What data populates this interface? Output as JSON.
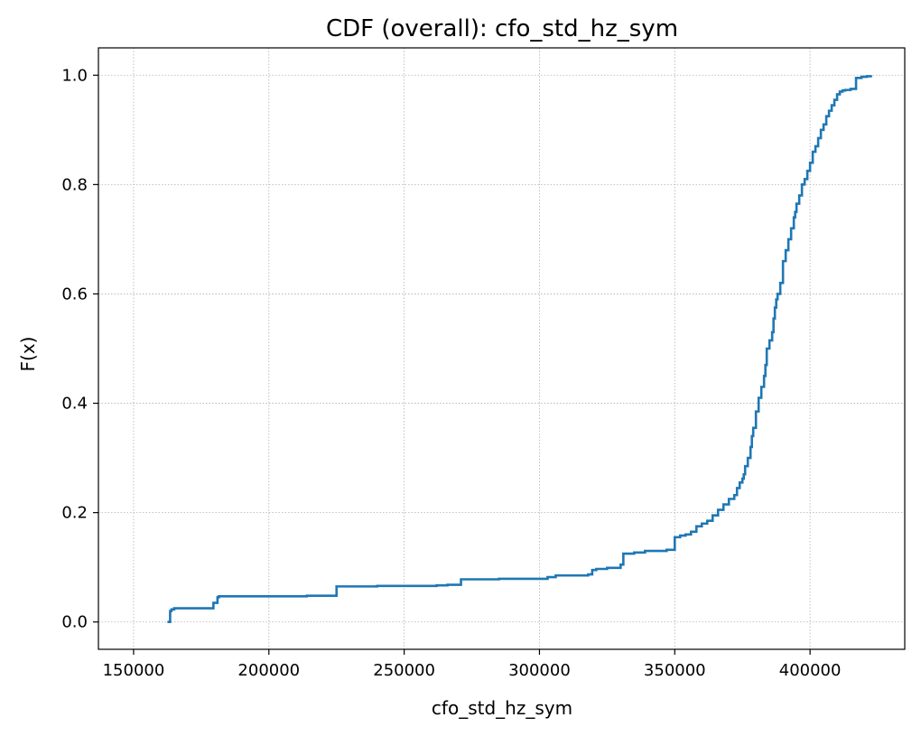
{
  "chart_data": {
    "type": "line",
    "title": "CDF (overall): cfo_std_hz_sym",
    "xlabel": "cfo_std_hz_sym",
    "ylabel": "F(x)",
    "xlim": [
      137000,
      435000
    ],
    "ylim": [
      -0.05,
      1.05
    ],
    "xticks": [
      150000,
      200000,
      250000,
      300000,
      350000,
      400000
    ],
    "xtick_labels": [
      "150000",
      "200000",
      "250000",
      "300000",
      "350000",
      "400000"
    ],
    "yticks": [
      0.0,
      0.2,
      0.4,
      0.6,
      0.8,
      1.0
    ],
    "ytick_labels": [
      "0.0",
      "0.2",
      "0.4",
      "0.6",
      "0.8",
      "1.0"
    ],
    "grid": true,
    "line_color": "#1f77b4",
    "step": true,
    "x": [
      162500,
      163500,
      164000,
      165000,
      179000,
      179500,
      181000,
      181500,
      214000,
      225000,
      240000,
      262000,
      266000,
      271000,
      285000,
      303000,
      306000,
      318000,
      319500,
      321000,
      325000,
      330000,
      331000,
      335000,
      339000,
      347000,
      350000,
      352000,
      354000,
      356000,
      358000,
      360000,
      362000,
      364000,
      366000,
      368000,
      370000,
      372000,
      373000,
      374000,
      375000,
      375500,
      376000,
      377000,
      378000,
      378500,
      379000,
      380000,
      381000,
      382000,
      383000,
      383500,
      384000,
      385000,
      386000,
      386500,
      387000,
      387500,
      388000,
      389000,
      390000,
      391000,
      392000,
      393000,
      394000,
      394500,
      395000,
      396000,
      397000,
      398000,
      399000,
      400000,
      401000,
      402000,
      403000,
      404000,
      405000,
      406000,
      407000,
      408000,
      409000,
      410000,
      411000,
      412000,
      413000,
      415000,
      417000,
      419000,
      421000,
      422500
    ],
    "y": [
      0.0,
      0.02,
      0.023,
      0.025,
      0.025,
      0.035,
      0.045,
      0.047,
      0.048,
      0.065,
      0.066,
      0.067,
      0.068,
      0.078,
      0.079,
      0.082,
      0.085,
      0.087,
      0.095,
      0.097,
      0.099,
      0.105,
      0.125,
      0.127,
      0.13,
      0.132,
      0.155,
      0.158,
      0.16,
      0.165,
      0.175,
      0.18,
      0.185,
      0.195,
      0.205,
      0.215,
      0.225,
      0.232,
      0.245,
      0.255,
      0.262,
      0.27,
      0.285,
      0.3,
      0.32,
      0.34,
      0.355,
      0.385,
      0.41,
      0.43,
      0.45,
      0.47,
      0.5,
      0.515,
      0.53,
      0.555,
      0.575,
      0.59,
      0.6,
      0.62,
      0.66,
      0.68,
      0.7,
      0.72,
      0.74,
      0.75,
      0.765,
      0.78,
      0.8,
      0.81,
      0.825,
      0.84,
      0.86,
      0.87,
      0.885,
      0.9,
      0.91,
      0.925,
      0.935,
      0.945,
      0.955,
      0.965,
      0.97,
      0.972,
      0.973,
      0.975,
      0.995,
      0.997,
      0.998,
      1.0
    ]
  }
}
